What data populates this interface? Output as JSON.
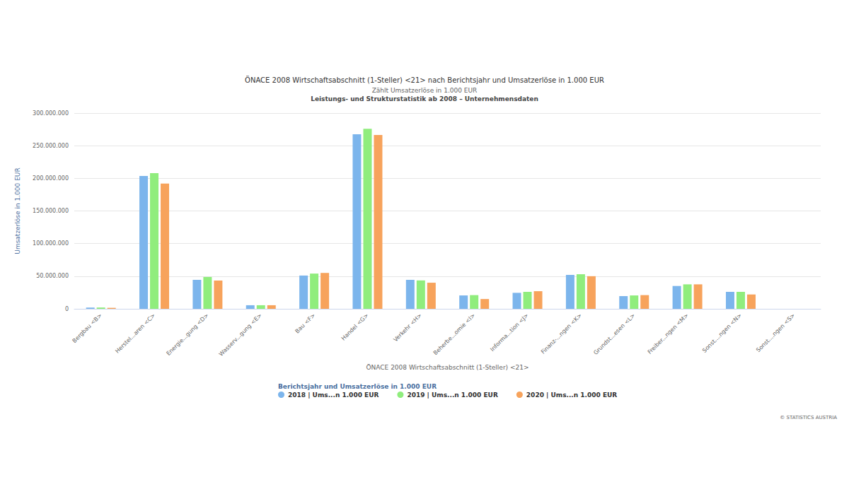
{
  "chart_data": {
    "type": "bar",
    "title": "ÖNACE 2008 Wirtschaftsabschnitt (1-Steller) <21> nach Berichtsjahr und Umsatzerlöse in 1.000 EUR",
    "subtitle": [
      "Zählt Umsatzerlöse in 1.000 EUR",
      "Leistungs- und Strukturstatistik ab 2008 – Unternehmensdaten"
    ],
    "x_label": "ÖNACE 2008 Wirtschaftsabschnitt (1-Steller) <21>",
    "y_label": "Umsatzerlöse in 1.000 EUR",
    "legend_title": "Berichtsjahr und Umsatzerlöse in 1.000 EUR",
    "annotations": [
      "© STATISTICS AUSTRIA"
    ],
    "categories": [
      "Bergbau <B>",
      "Herstel...aren <C>",
      "Energie...gung <D>",
      "Wasserv...gung <E>",
      "Bau <F>",
      "Handel <G>",
      "Verkehr <H>",
      "Beherbe...omie <I>",
      "Informa...tion <J>",
      "Finanz-...ngen <K>",
      "Grundst...esen <L>",
      "Freiber...ngen <M>",
      "Sonst....ngen <N>",
      "Sonst....ngen <S>"
    ],
    "series": [
      {
        "name": "2018 | Ums...n 1.000 EUR",
        "color": "#7cb5ec",
        "values": [
          2000000,
          203700000,
          44400000,
          5500000,
          51000000,
          267600000,
          44400000,
          20500000,
          24500000,
          52000000,
          19500000,
          35000000,
          26000000,
          null
        ]
      },
      {
        "name": "2019 | Ums...n 1.000 EUR",
        "color": "#90ed7d",
        "values": [
          2000000,
          208000000,
          48800000,
          5500000,
          54000000,
          276000000,
          43500000,
          21000000,
          26000000,
          53000000,
          20500000,
          37500000,
          26000000,
          null
        ]
      },
      {
        "name": "2020 | Ums...n 1.000 EUR",
        "color": "#f7a35c",
        "values": [
          1500000,
          192000000,
          43300000,
          5500000,
          55000000,
          266500000,
          40000000,
          15000000,
          27000000,
          50000000,
          21000000,
          37500000,
          22000000,
          null
        ]
      }
    ],
    "ylim": [
      0,
      300000000
    ],
    "yticks": [
      0,
      {
        "value": 50000000,
        "label": "50.000.000"
      },
      {
        "value": 100000000,
        "label": "100.000.000"
      },
      {
        "value": 150000000,
        "label": "150.000.000"
      },
      {
        "value": 200000000,
        "label": "200.000.000"
      },
      {
        "value": 250000000,
        "label": "250.000.000"
      },
      {
        "value": 300000000,
        "label": "300.000.000"
      }
    ],
    "grid": true,
    "legend": "bottom"
  }
}
